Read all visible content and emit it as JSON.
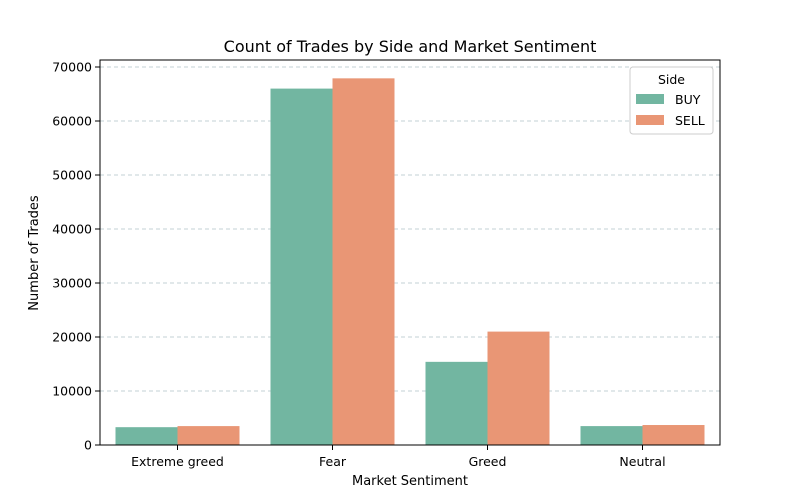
{
  "chart_data": {
    "type": "bar",
    "title": "Count of Trades by Side and Market Sentiment",
    "xlabel": "Market Sentiment",
    "ylabel": "Number of Trades",
    "categories": [
      "Extreme greed",
      "Fear",
      "Greed",
      "Neutral"
    ],
    "series": [
      {
        "name": "BUY",
        "color": "#72b6a1",
        "values": [
          3300,
          66000,
          15400,
          3500
        ]
      },
      {
        "name": "SELL",
        "color": "#e99675",
        "values": [
          3500,
          67900,
          21000,
          3700
        ]
      }
    ],
    "ylim": [
      0,
      70000
    ],
    "yticks": [
      0,
      10000,
      20000,
      30000,
      40000,
      50000,
      60000,
      70000
    ],
    "ytick_labels": [
      "0",
      "10000",
      "20000",
      "30000",
      "40000",
      "50000",
      "60000",
      "70000"
    ],
    "grid": "y, dashed",
    "legend": {
      "title": "Side",
      "placement": "top-right"
    }
  }
}
